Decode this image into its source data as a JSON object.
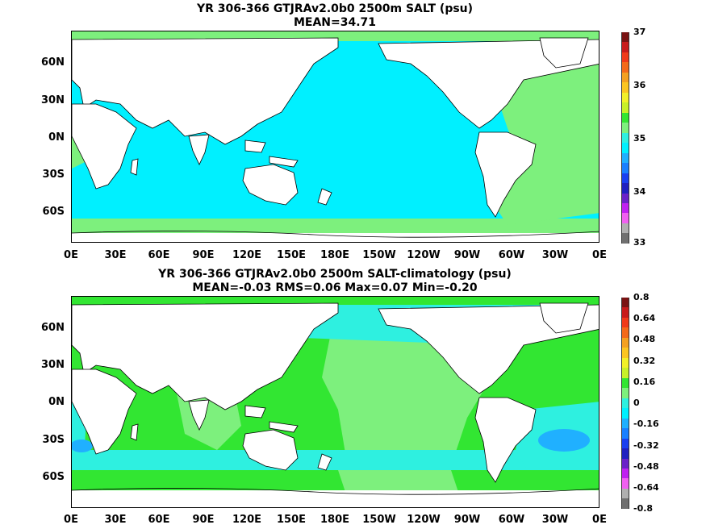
{
  "map_top": {
    "title_line1": "YR 306-366 GTJRAv2.0b0 2500m SALT (psu)",
    "title_line2": "MEAN=34.71",
    "lat_labels": [
      "60N",
      "30N",
      "0N",
      "30S",
      "60S"
    ],
    "lon_labels": [
      "0E",
      "30E",
      "60E",
      "90E",
      "120E",
      "150E",
      "180E",
      "150W",
      "120W",
      "90W",
      "60W",
      "30W",
      "0E"
    ],
    "colorbar": {
      "labels": [
        "37",
        "36",
        "35",
        "34",
        "33"
      ],
      "colors": [
        "#7a1313",
        "#c81b1b",
        "#f03a1a",
        "#f46a1a",
        "#f4a020",
        "#fbc520",
        "#f2f028",
        "#c8f028",
        "#32e632",
        "#7df07d",
        "#2ef0e0",
        "#00f0ff",
        "#20b0ff",
        "#1a80ff",
        "#1a40f0",
        "#2020c0",
        "#6a20c8",
        "#c020f0",
        "#f060f0",
        "#b0b0b0",
        "#707070"
      ]
    }
  },
  "map_bottom": {
    "title_line1": "YR 306-366 GTJRAv2.0b0 2500m SALT-climatology (psu)",
    "title_line2": "MEAN=-0.03   RMS=0.06   Max=0.07   Min=-0.20",
    "lat_labels": [
      "60N",
      "30N",
      "0N",
      "30S",
      "60S"
    ],
    "lon_labels": [
      "0E",
      "30E",
      "60E",
      "90E",
      "120E",
      "150E",
      "180E",
      "150W",
      "120W",
      "90W",
      "60W",
      "30W",
      "0E"
    ],
    "colorbar": {
      "labels": [
        "0.8",
        "0.64",
        "0.48",
        "0.32",
        "0.16",
        "0",
        "-0.16",
        "-0.32",
        "-0.48",
        "-0.64",
        "-0.8"
      ],
      "colors": [
        "#7a1313",
        "#c81b1b",
        "#f03a1a",
        "#f46a1a",
        "#f4a020",
        "#fbc520",
        "#f2f028",
        "#c8f028",
        "#32e632",
        "#7df07d",
        "#2ef0e0",
        "#00f0ff",
        "#20b0ff",
        "#1a80ff",
        "#1a40f0",
        "#2020c0",
        "#6a20c8",
        "#c020f0",
        "#f060f0",
        "#b0b0b0",
        "#707070"
      ]
    }
  }
}
